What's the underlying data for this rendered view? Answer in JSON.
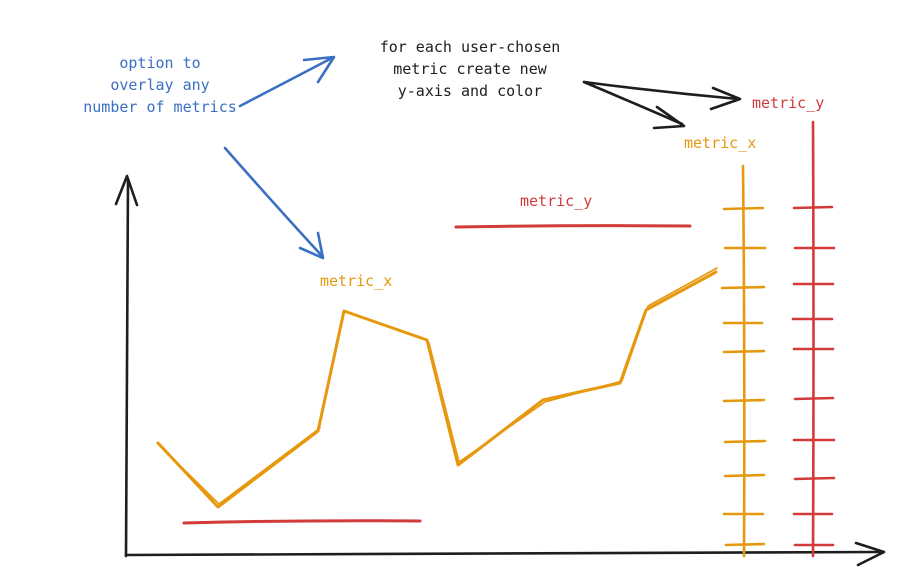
{
  "colors": {
    "annotation_blue": "#3a6fc4",
    "annotation_black": "#1e1e1e",
    "metric_x": "#e6980f",
    "metric_y": "#d33a3a",
    "axis": "#1e1e1e"
  },
  "notes": {
    "overlay": [
      "option to",
      "overlay any",
      "number of metrics"
    ],
    "per_metric": [
      "for each user-chosen",
      "metric create new",
      "y-axis and color"
    ]
  },
  "labels": {
    "right_axis_y": "metric_y",
    "right_axis_x": "metric_x",
    "chart_y": "metric_y",
    "chart_x": "metric_x"
  }
}
